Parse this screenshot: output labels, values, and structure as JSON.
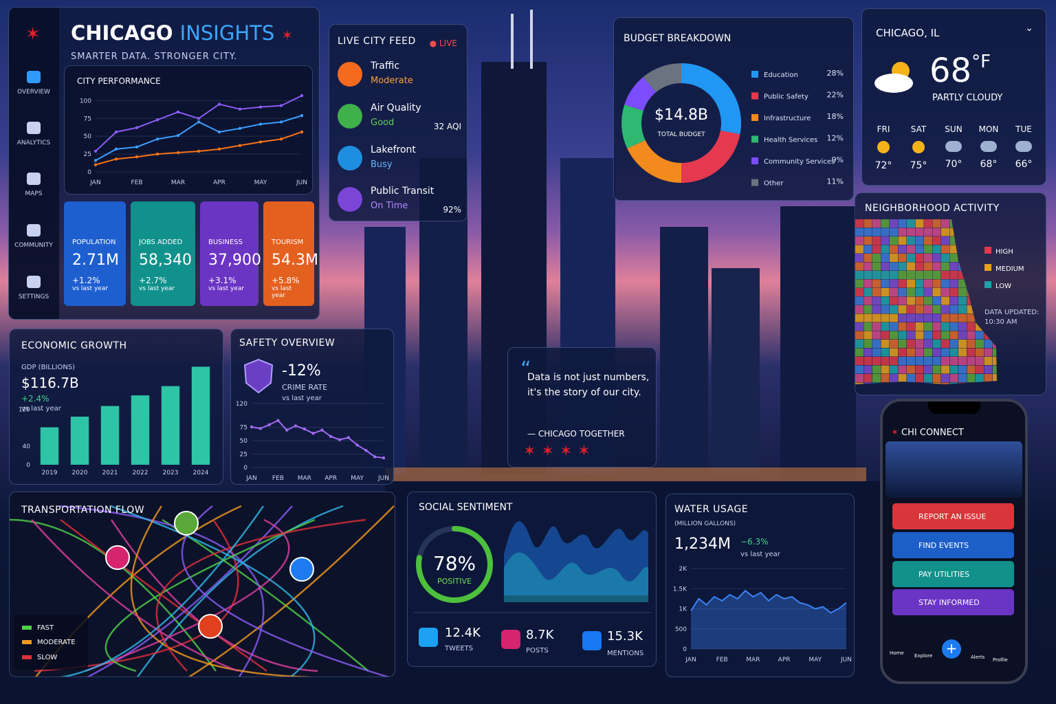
{
  "sidebar": {
    "items": [
      "OVERVIEW",
      "ANALYTICS",
      "MAPS",
      "COMMUNITY",
      "SETTINGS"
    ]
  },
  "header": {
    "title_main": "CHICAGO",
    "title_accent": "INSIGHTS",
    "subtitle": "SMARTER DATA. STRONGER CITY."
  },
  "city_performance": {
    "chart_data": {
      "type": "line",
      "title": "CITY PERFORMANCE",
      "categories": [
        "JAN",
        null,
        "FEB",
        null,
        "MAR",
        null,
        "APR",
        null,
        "MAY",
        null,
        "JUN"
      ],
      "series": [
        {
          "color": "#8b5cf6",
          "values": [
            29,
            56,
            62,
            73,
            84,
            75,
            95,
            88,
            91,
            93,
            107
          ]
        },
        {
          "color": "#3b9eff",
          "values": [
            16,
            32,
            35,
            46,
            51,
            70,
            56,
            61,
            67,
            70,
            79
          ]
        },
        {
          "color": "#f97316",
          "values": [
            10,
            18,
            21,
            25,
            27,
            29,
            32,
            37,
            42,
            46,
            56
          ]
        }
      ],
      "ylim": [
        0,
        110
      ],
      "yticks": [
        0,
        25,
        50,
        75,
        100
      ],
      "grid": true
    }
  },
  "kpis": [
    {
      "label": "POPULATION",
      "value": "2.71M",
      "change": "+1.2%",
      "note": "vs last year"
    },
    {
      "label": "JOBS ADDED",
      "value": "58,340",
      "change": "+2.7%",
      "note": "vs last year"
    },
    {
      "label": "BUSINESS",
      "value": "37,900",
      "change": "+3.1%",
      "note": "vs last year"
    },
    {
      "label": "TOURISM",
      "value": "54.3M",
      "change": "+5.8%",
      "note": "vs last year"
    }
  ],
  "live_feed": {
    "title": "LIVE CITY FEED",
    "badge": "LIVE",
    "items": [
      {
        "name": "Traffic",
        "status": "Moderate"
      },
      {
        "name": "Air Quality",
        "status": "Good",
        "metric": "32 AQI"
      },
      {
        "name": "Lakefront",
        "status": "Busy"
      },
      {
        "name": "Public Transit",
        "status": "On Time",
        "metric": "92%"
      }
    ]
  },
  "budget": {
    "chart_data": {
      "type": "donut",
      "title": "BUDGET BREAKDOWN",
      "center_value": "$14.8B",
      "center_label": "TOTAL BUDGET",
      "categories": [
        "Education",
        "Public Safety",
        "Infrastructure",
        "Health Services",
        "Community Services",
        "Other"
      ],
      "values": [
        28,
        22,
        18,
        12,
        9,
        11
      ],
      "value_labels": [
        "28%",
        "22%",
        "18%",
        "12%",
        "9%",
        "11%"
      ],
      "colors": [
        "#2196f3",
        "#e53950",
        "#f28a1e",
        "#2eb872",
        "#7c4dff",
        "#6b7280"
      ]
    }
  },
  "weather": {
    "location": "CHICAGO, IL",
    "temperature": "68",
    "unit": "°F",
    "condition": "PARTLY CLOUDY",
    "forecast": [
      {
        "day": "FRI",
        "temp": "72°"
      },
      {
        "day": "SAT",
        "temp": "75°"
      },
      {
        "day": "SUN",
        "temp": "70°"
      },
      {
        "day": "MON",
        "temp": "68°"
      },
      {
        "day": "TUE",
        "temp": "66°"
      }
    ]
  },
  "neighborhood": {
    "title": "NEIGHBORHOOD ACTIVITY",
    "legend": [
      "HIGH",
      "MEDIUM",
      "LOW"
    ],
    "updated_label": "DATA UPDATED:",
    "updated_time": "10:30 AM"
  },
  "economic": {
    "chart_data": {
      "type": "bar",
      "title": "ECONOMIC GROWTH",
      "subtitle": "GDP (BILLIONS)",
      "headline": "$116.7B",
      "change": "+2.4%",
      "note": "vs last year",
      "categories": [
        "2019",
        "2020",
        "2021",
        "2022",
        "2023",
        "2024"
      ],
      "values": [
        81,
        104,
        127,
        150,
        170,
        212
      ],
      "color": "#2ec4a6",
      "ylim": [
        0,
        220
      ],
      "yticks": [
        0,
        40,
        120
      ],
      "grid": false
    }
  },
  "safety": {
    "chart_data": {
      "type": "line",
      "title": "SAFETY OVERVIEW",
      "headline": "-12%",
      "label": "CRIME RATE",
      "note": "vs last year",
      "categories": [
        "JAN",
        null,
        null,
        "FEB",
        null,
        null,
        "MAR",
        null,
        null,
        "APR",
        null,
        null,
        "MAY",
        null,
        null,
        "JUN"
      ],
      "series": [
        {
          "color": "#a06cf0",
          "values": [
            76,
            73,
            80,
            88,
            70,
            78,
            72,
            64,
            70,
            58,
            52,
            56,
            42,
            32,
            20,
            18
          ]
        }
      ],
      "ylim": [
        0,
        130
      ],
      "yticks": [
        0,
        25,
        50,
        75,
        120
      ],
      "grid": true
    }
  },
  "quote": {
    "text": "Data is not just numbers, it's the story of our city.",
    "author": "— CHICAGO TOGETHER"
  },
  "transportation": {
    "title": "TRANSPORTATION FLOW",
    "legend": [
      "FAST",
      "MODERATE",
      "SLOW"
    ]
  },
  "social": {
    "title": "SOCIAL SENTIMENT",
    "chart_data": {
      "type": "gauge",
      "values": [
        78
      ],
      "value_labels": [
        "78%"
      ],
      "label": "POSITIVE",
      "ylim": [
        0,
        100
      ],
      "color": "#4cc03c"
    },
    "stats": [
      {
        "value": "12.4K",
        "label": "TWEETS"
      },
      {
        "value": "8.7K",
        "label": "POSTS"
      },
      {
        "value": "15.3K",
        "label": "MENTIONS"
      }
    ]
  },
  "water": {
    "chart_data": {
      "type": "area",
      "title": "WATER USAGE",
      "subtitle": "(MILLION GALLONS)",
      "headline": "1,234M",
      "change": "−6.3%",
      "note": "vs last year",
      "categories": [
        "JAN",
        null,
        null,
        null,
        "FEB",
        null,
        null,
        null,
        "MAR",
        null,
        null,
        null,
        "APR",
        null,
        null,
        null,
        "MAY",
        null,
        null,
        null,
        "JUN"
      ],
      "series": [
        {
          "color": "#3b82f6",
          "values": [
            950,
            1250,
            1100,
            1300,
            1200,
            1350,
            1250,
            1450,
            1300,
            1400,
            1200,
            1350,
            1250,
            1300,
            1150,
            1100,
            1000,
            1050,
            900,
            1000,
            1150
          ]
        }
      ],
      "ylim": [
        0,
        2000
      ],
      "yticks": [
        0,
        500,
        {
          "value": 1000,
          "label": "1K"
        },
        {
          "value": 1500,
          "label": "1.5K"
        },
        {
          "value": 2000,
          "label": "2K"
        }
      ],
      "grid": true
    }
  },
  "phone": {
    "app": "CHI CONNECT",
    "actions": [
      "REPORT AN ISSUE",
      "FIND EVENTS",
      "PAY UTILITIES",
      "STAY INFORMED"
    ],
    "nav": [
      "Home",
      "Explore",
      "Alerts",
      "Profile"
    ]
  }
}
